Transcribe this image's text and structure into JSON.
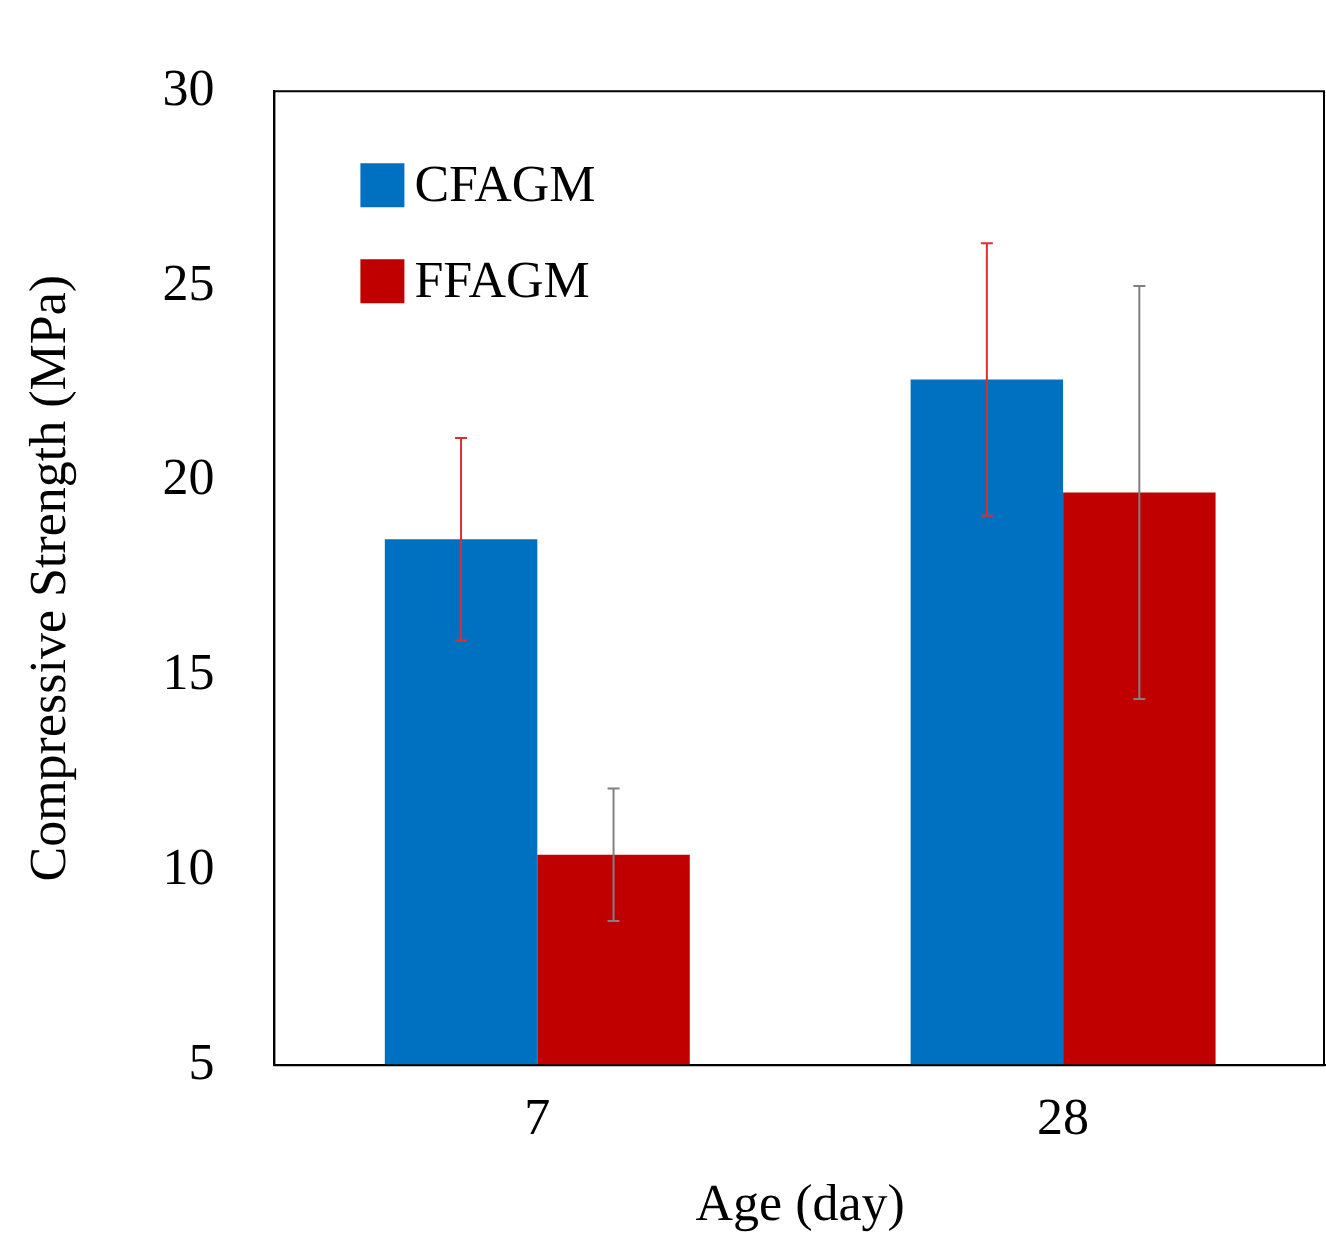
{
  "chart_data": {
    "type": "bar",
    "xlabel": "Age (day)",
    "ylabel": "Compressive Strength (MPa)",
    "categories": [
      "7",
      "28"
    ],
    "series": [
      {
        "name": "CFAGM",
        "color": "#0070c0",
        "values": [
          18.5,
          22.6
        ],
        "errors": [
          2.6,
          3.5
        ]
      },
      {
        "name": "FFAGM",
        "color": "#c00000",
        "values": [
          10.4,
          19.7
        ],
        "errors": [
          1.7,
          5.3
        ]
      }
    ],
    "ylim": [
      5,
      30
    ],
    "yticks": [
      5,
      10,
      15,
      20,
      25,
      30
    ],
    "grid": false,
    "legend": "top left"
  }
}
